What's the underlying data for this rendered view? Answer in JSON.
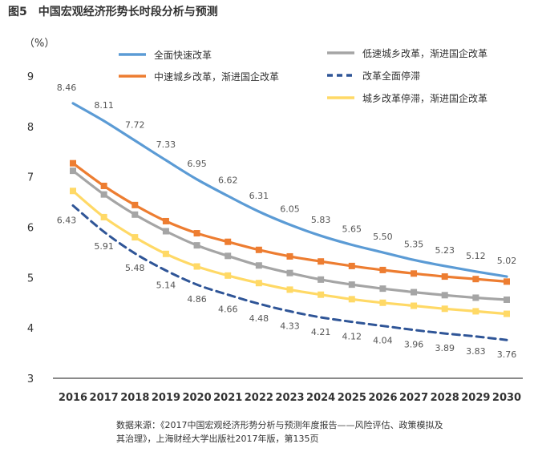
{
  "figure": {
    "number": "图5",
    "title": "中国宏观经济形势长时段分析与预测"
  },
  "source": {
    "line1": "数据来源：《2017中国宏观经济形势分析与预测年度报告——风险评估、政策模拟及",
    "line2": "其治理》，上海财经大学出版社2017年版，第135页"
  },
  "chart_data": {
    "type": "line",
    "ylabel": "（%）",
    "ylim": [
      3,
      9
    ],
    "yticks": [
      3,
      4,
      5,
      6,
      7,
      8,
      9
    ],
    "grid": false,
    "legend_position": "top",
    "x": [
      2016,
      2017,
      2018,
      2019,
      2020,
      2021,
      2022,
      2023,
      2024,
      2025,
      2026,
      2027,
      2028,
      2029,
      2030
    ],
    "series": [
      {
        "name": "全面快速改革",
        "color": "#5b9bd5",
        "style": "solid",
        "markers": false,
        "labeled": true,
        "values": [
          8.46,
          8.11,
          7.72,
          7.33,
          6.95,
          6.62,
          6.31,
          6.05,
          5.83,
          5.65,
          5.5,
          5.35,
          5.23,
          5.12,
          5.02
        ]
      },
      {
        "name": "中速城乡改革，渐进国企改革",
        "color": "#ed7d31",
        "style": "solid",
        "markers": true,
        "labeled": false,
        "values": [
          7.27,
          6.82,
          6.44,
          6.12,
          5.88,
          5.71,
          5.55,
          5.42,
          5.32,
          5.23,
          5.15,
          5.08,
          5.02,
          4.97,
          4.92
        ]
      },
      {
        "name": "低速城乡改革，渐进国企改革",
        "color": "#a5a5a5",
        "style": "solid",
        "markers": true,
        "labeled": false,
        "values": [
          7.12,
          6.65,
          6.25,
          5.92,
          5.64,
          5.43,
          5.24,
          5.09,
          4.96,
          4.86,
          4.78,
          4.71,
          4.65,
          4.6,
          4.56
        ]
      },
      {
        "name": "改革全面停滞",
        "color": "#2f5597",
        "style": "dashed",
        "markers": false,
        "labeled": true,
        "values": [
          6.43,
          5.91,
          5.48,
          5.14,
          4.86,
          4.66,
          4.48,
          4.33,
          4.21,
          4.12,
          4.04,
          3.96,
          3.89,
          3.83,
          3.76
        ]
      },
      {
        "name": "城乡改革停滞，渐进国企改革",
        "color": "#ffd966",
        "style": "solid",
        "markers": true,
        "labeled": false,
        "values": [
          6.72,
          6.2,
          5.8,
          5.47,
          5.22,
          5.04,
          4.89,
          4.76,
          4.66,
          4.57,
          4.5,
          4.44,
          4.38,
          4.33,
          4.28
        ]
      }
    ]
  }
}
